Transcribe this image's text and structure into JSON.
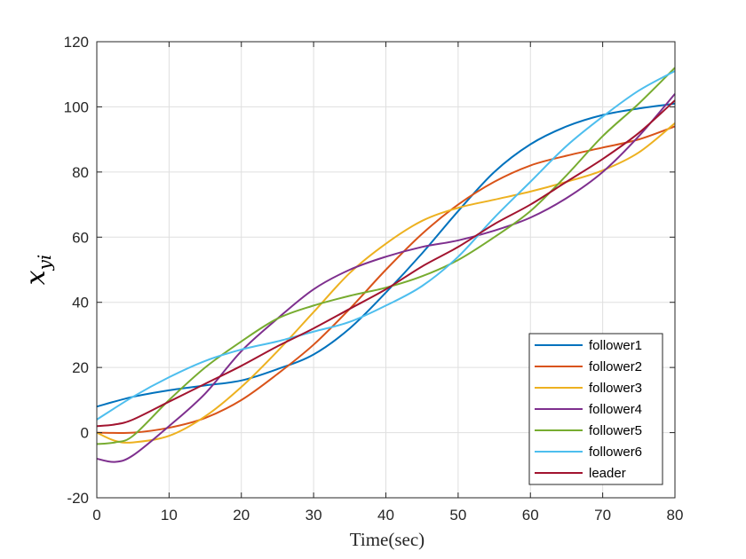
{
  "chart_data": {
    "type": "line",
    "xlabel": "Time(sec)",
    "ylabel_main": "x",
    "ylabel_sub": "yi",
    "xlim": [
      0,
      80
    ],
    "ylim": [
      -20,
      120
    ],
    "xticks": [
      0,
      10,
      20,
      30,
      40,
      50,
      60,
      70,
      80
    ],
    "yticks": [
      -20,
      0,
      20,
      40,
      60,
      80,
      100,
      120
    ],
    "grid": true,
    "legend_position": "bottom-right",
    "series": [
      {
        "name": "follower1",
        "color": "#0072BD",
        "x": [
          0,
          5,
          10,
          15,
          20,
          25,
          30,
          35,
          40,
          45,
          50,
          55,
          60,
          65,
          70,
          75,
          80
        ],
        "y": [
          8,
          11,
          13,
          14.5,
          16,
          19.5,
          24,
          32,
          43,
          55,
          68,
          80,
          88.5,
          94,
          97.5,
          99.5,
          101
        ]
      },
      {
        "name": "follower2",
        "color": "#D95319",
        "x": [
          0,
          5,
          10,
          15,
          20,
          25,
          30,
          35,
          40,
          45,
          50,
          55,
          60,
          65,
          70,
          75,
          80
        ],
        "y": [
          0,
          0,
          1.5,
          4.5,
          10,
          18,
          27,
          38,
          50,
          61,
          70,
          77,
          82,
          85,
          87.5,
          90,
          94
        ]
      },
      {
        "name": "follower3",
        "color": "#EDB120",
        "x": [
          0,
          2.5,
          5,
          10,
          15,
          20,
          25,
          30,
          35,
          40,
          45,
          50,
          55,
          60,
          65,
          70,
          75,
          80
        ],
        "y": [
          0,
          -2.5,
          -3,
          -1,
          5,
          14,
          25,
          37,
          49,
          58,
          65,
          69,
          71.5,
          74,
          77,
          80.5,
          86,
          95
        ]
      },
      {
        "name": "follower4",
        "color": "#7E2F8E",
        "x": [
          0,
          2.5,
          5,
          10,
          15,
          20,
          25,
          30,
          35,
          40,
          45,
          50,
          55,
          60,
          65,
          70,
          75,
          80
        ],
        "y": [
          -8,
          -9,
          -7,
          2,
          12,
          25,
          35,
          44,
          50,
          54,
          57,
          59,
          62,
          66,
          72,
          80,
          91,
          104
        ]
      },
      {
        "name": "follower5",
        "color": "#77AC30",
        "x": [
          0,
          2.5,
          5,
          10,
          15,
          20,
          25,
          30,
          35,
          40,
          45,
          50,
          55,
          60,
          65,
          70,
          75,
          80
        ],
        "y": [
          -3.5,
          -3,
          -1,
          10,
          20,
          28,
          35,
          39,
          42,
          44.5,
          48,
          53,
          60,
          68,
          79,
          91,
          101,
          112
        ]
      },
      {
        "name": "follower6",
        "color": "#4DBEEE",
        "x": [
          0,
          5,
          10,
          15,
          20,
          25,
          30,
          35,
          40,
          45,
          50,
          55,
          60,
          65,
          70,
          75,
          80
        ],
        "y": [
          4,
          11,
          17,
          22,
          25.5,
          28,
          31,
          34,
          39,
          45,
          54,
          66,
          77,
          88,
          97,
          105,
          111
        ]
      },
      {
        "name": "leader",
        "color": "#A2142F",
        "x": [
          0,
          2.5,
          5,
          10,
          15,
          20,
          25,
          30,
          35,
          40,
          45,
          50,
          55,
          60,
          65,
          70,
          75,
          80
        ],
        "y": [
          2,
          2.5,
          4,
          9.5,
          15,
          20.5,
          26.5,
          32,
          38,
          44,
          51,
          57,
          64,
          70,
          77,
          84,
          92,
          102
        ]
      }
    ]
  }
}
